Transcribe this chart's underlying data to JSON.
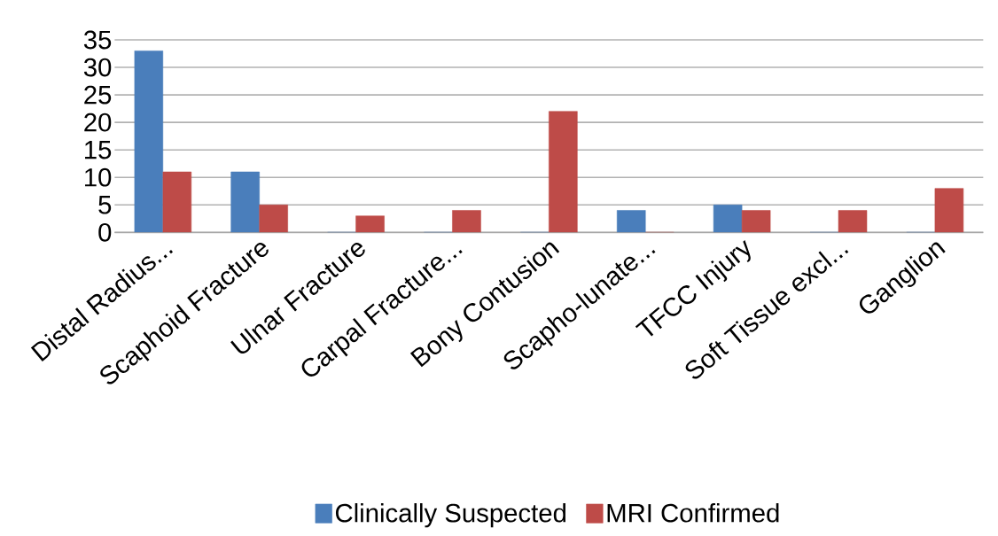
{
  "chart_data": {
    "type": "bar",
    "categories": [
      "Distal Radius...",
      "Scaphoid Fracture",
      "Ulnar Fracture",
      "Carpal Fracture...",
      "Bony Contusion",
      "Scapho-lunate...",
      "TFCC Injury",
      "Soft Tissue excl...",
      "Ganglion"
    ],
    "series": [
      {
        "name": "Clinically Suspected",
        "color": "#4a7ebb",
        "values": [
          33,
          11,
          0,
          0,
          0,
          4,
          5,
          0,
          0
        ]
      },
      {
        "name": "MRI Confirmed",
        "color": "#be4b48",
        "values": [
          11,
          5,
          3,
          4,
          22,
          0,
          4,
          4,
          8
        ]
      }
    ],
    "ylim": [
      0,
      35
    ],
    "yticks": [
      0,
      5,
      10,
      15,
      20,
      25,
      30,
      35
    ],
    "grid": "y",
    "legend": "bottom"
  }
}
